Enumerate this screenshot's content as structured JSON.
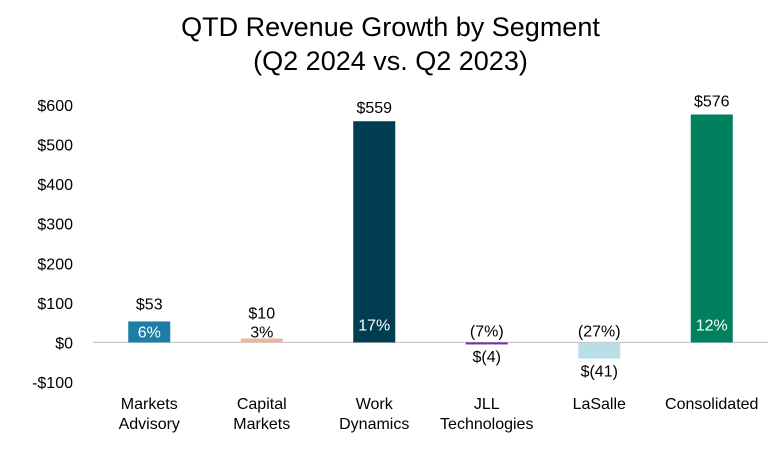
{
  "chart_data": {
    "type": "bar",
    "title": "QTD Revenue Growth by Segment",
    "subtitle": "(Q2 2024 vs. Q2 2023)",
    "xlabel": "",
    "ylabel": "",
    "ylim": [
      -100,
      600
    ],
    "yticks": [
      -100,
      0,
      100,
      200,
      300,
      400,
      500,
      600
    ],
    "ytick_labels": [
      "-$100",
      "$0",
      "$100",
      "$200",
      "$300",
      "$400",
      "$500",
      "$600"
    ],
    "grid": false,
    "categories": [
      [
        "Markets",
        "Advisory"
      ],
      [
        "Capital",
        "Markets"
      ],
      [
        "Work",
        "Dynamics"
      ],
      [
        "JLL",
        "Technologies"
      ],
      [
        "LaSalle"
      ],
      [
        "Consolidated"
      ]
    ],
    "values": [
      53,
      10,
      559,
      -4,
      -41,
      576
    ],
    "value_labels": [
      "$53",
      "$10",
      "$559",
      "$(4)",
      "$(41)",
      "$576"
    ],
    "percent_labels": [
      "6%",
      "3%",
      "17%",
      "(7%)",
      "(27%)",
      "12%"
    ],
    "colors": [
      "#1a7ea6",
      "#e6b8a2",
      "#003d52",
      "#7030a0",
      "#b9dee8",
      "#00805f"
    ]
  }
}
